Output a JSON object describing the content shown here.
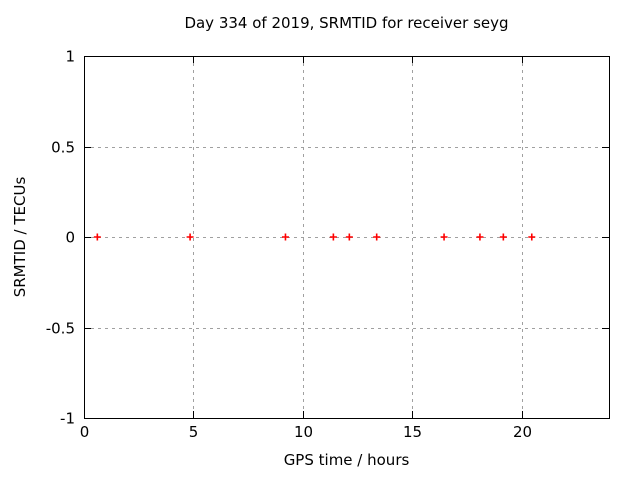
{
  "colors": {
    "background": "#ffffff",
    "text": "#000000",
    "border": "#000000",
    "grid": "#a0a0a0",
    "marker": "#ff0000"
  },
  "chart_data": {
    "type": "scatter",
    "title": "Day 334 of 2019, SRMTID for receiver seyg",
    "xlabel": "GPS time / hours",
    "ylabel": "SRMTID / TECUs",
    "xlim": [
      0,
      24
    ],
    "ylim": [
      -1,
      1
    ],
    "grid": true,
    "legend": "none",
    "xticks": {
      "values": [
        0,
        5,
        10,
        15,
        20
      ],
      "labels": [
        "0",
        "5",
        "10",
        "15",
        "20"
      ]
    },
    "yticks": {
      "values": [
        -1,
        -0.5,
        0,
        0.5,
        1
      ],
      "labels": [
        "-1",
        "-0.5",
        "0",
        "0.5",
        "1"
      ]
    },
    "series": [
      {
        "name": "SRMTID",
        "marker": "plus",
        "color": "#ff0000",
        "points": [
          [
            0.61,
            0
          ],
          [
            4.85,
            0
          ],
          [
            9.21,
            0
          ],
          [
            11.4,
            0
          ],
          [
            12.13,
            0
          ],
          [
            13.38,
            0
          ],
          [
            16.46,
            0
          ],
          [
            18.1,
            0
          ],
          [
            19.17,
            0
          ],
          [
            20.47,
            0
          ]
        ]
      }
    ]
  }
}
